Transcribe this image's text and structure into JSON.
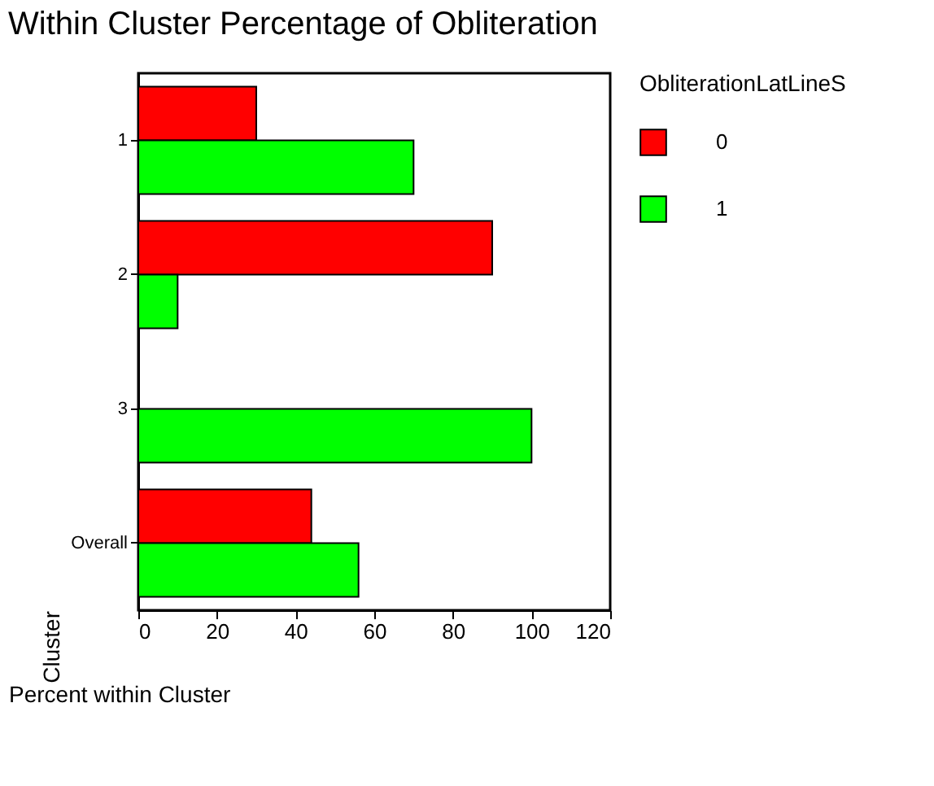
{
  "chart_data": {
    "type": "bar",
    "orientation": "horizontal",
    "title": "Within Cluster Percentage of Obliteration",
    "categories": [
      "1",
      "2",
      "3",
      "Overall"
    ],
    "series": [
      {
        "name": "0",
        "color": "#ff0000",
        "values": [
          30,
          90,
          null,
          44
        ]
      },
      {
        "name": "1",
        "color": "#00ff00",
        "values": [
          70,
          10,
          100,
          56
        ]
      }
    ],
    "xlabel": "Percent within Cluster",
    "ylabel": "Cluster",
    "legend_title": "ObliterationLatLineS",
    "xlim": [
      0,
      120
    ],
    "xticks": [
      0,
      20,
      40,
      60,
      80,
      100,
      120
    ],
    "grid": false,
    "legend": "right"
  }
}
